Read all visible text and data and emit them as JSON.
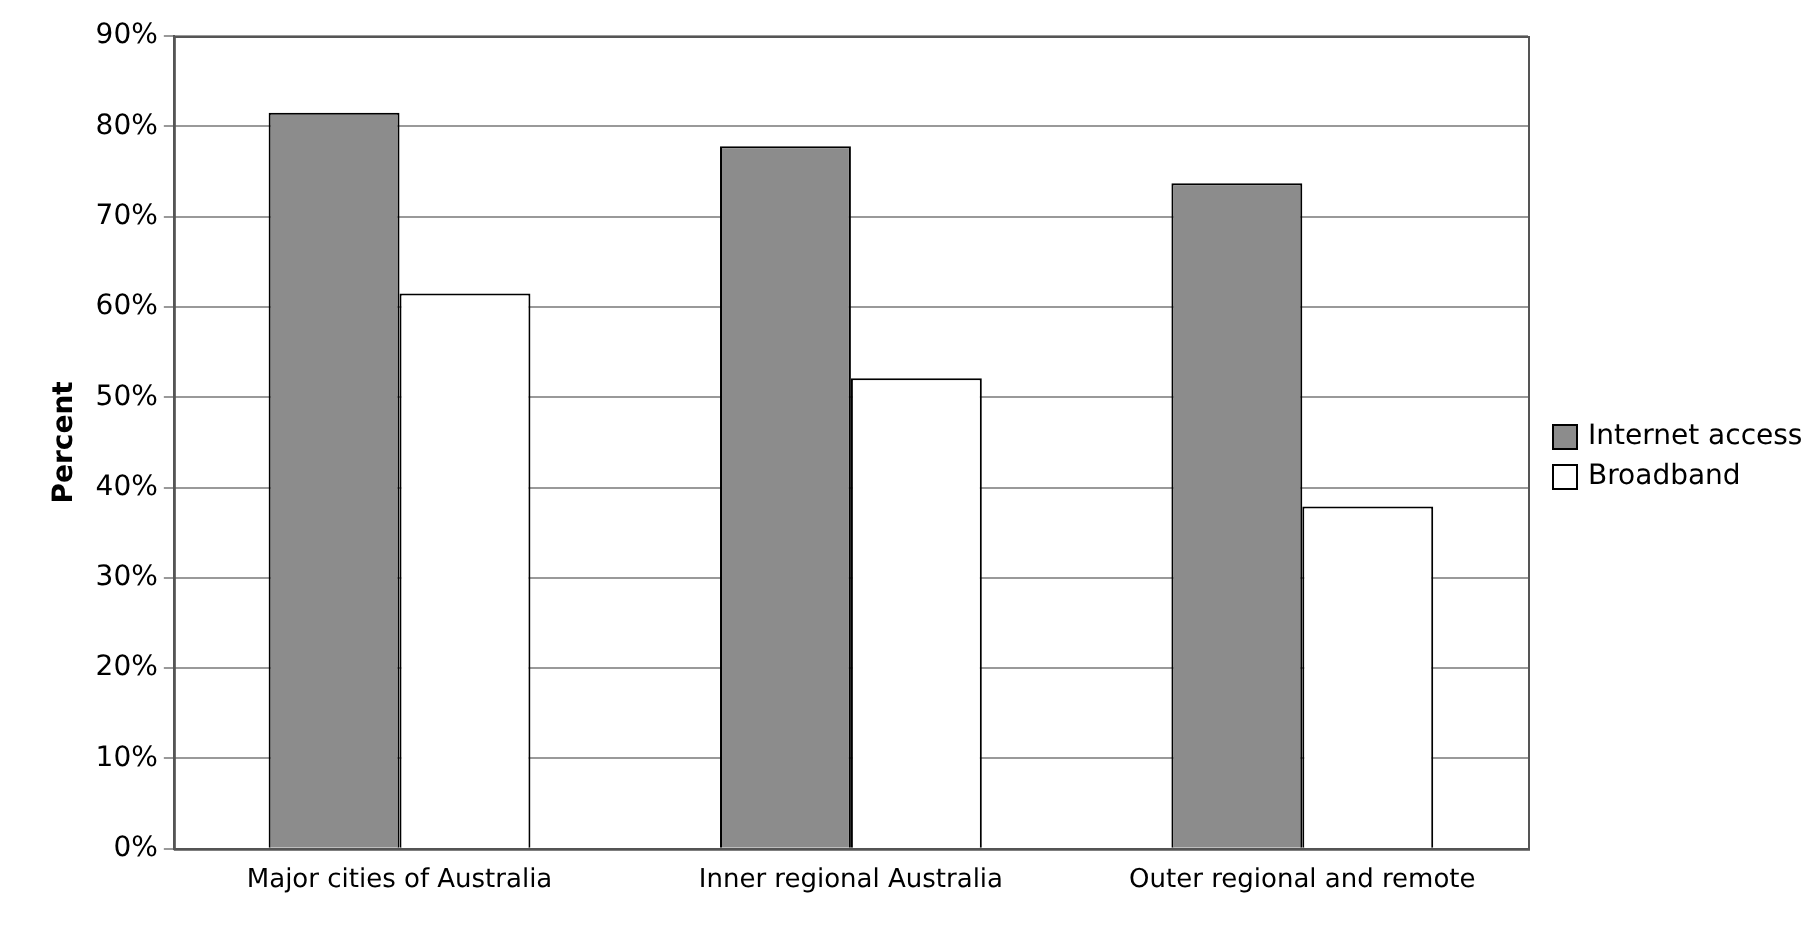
{
  "chart_data": {
    "type": "bar",
    "ylabel": "Percent",
    "categories": [
      "Major cities of Australia",
      "Inner regional Australia",
      "Outer regional and remote"
    ],
    "series": [
      {
        "name": "Internet access",
        "color": "#8c8c8c",
        "values": [
          81.5,
          77.8,
          73.7
        ]
      },
      {
        "name": "Broadband",
        "color": "#ffffff",
        "values": [
          61.5,
          52.1,
          37.9
        ]
      }
    ],
    "ylim": [
      0,
      90
    ],
    "yticks": [
      {
        "value": 0,
        "label": "0%"
      },
      {
        "value": 10,
        "label": "10%"
      },
      {
        "value": 20,
        "label": "20%"
      },
      {
        "value": 30,
        "label": "30%"
      },
      {
        "value": 40,
        "label": "40%"
      },
      {
        "value": 50,
        "label": "50%"
      },
      {
        "value": 60,
        "label": "60%"
      },
      {
        "value": 70,
        "label": "70%"
      },
      {
        "value": 80,
        "label": "80%"
      },
      {
        "value": 90,
        "label": "90%"
      }
    ],
    "grid": "y",
    "legend": "right"
  }
}
